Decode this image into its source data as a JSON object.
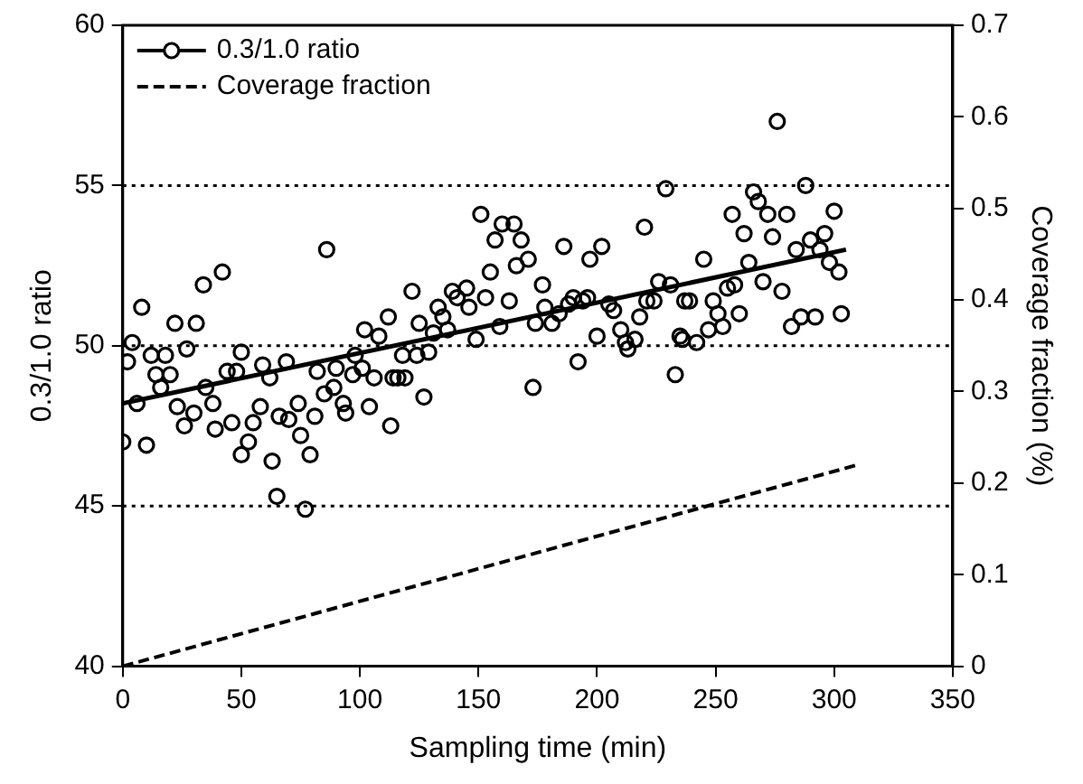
{
  "chart_data": {
    "type": "scatter",
    "xlabel": "Sampling time (min)",
    "ylabel": "0.3/1.0 ratio",
    "y2label": "Coverage fraction (%)",
    "xlim": [
      0,
      350
    ],
    "xticks": [
      0,
      50,
      100,
      150,
      200,
      250,
      300,
      350
    ],
    "ylim": [
      40,
      60
    ],
    "yticks": [
      40,
      45,
      50,
      55,
      60
    ],
    "y2lim": [
      0,
      0.7
    ],
    "y2ticks": [
      0,
      0.1,
      0.2,
      0.3,
      0.4,
      0.5,
      0.6,
      0.7
    ],
    "legend": "top left",
    "marker": "circle",
    "ref_lines": [
      {
        "axis": "y",
        "value": 45,
        "line_style": "dotted"
      },
      {
        "axis": "y",
        "value": 50,
        "line_style": "dotted"
      },
      {
        "axis": "y",
        "value": 55,
        "line_style": "dotted"
      }
    ],
    "series": [
      {
        "name": "0.3/1.0 ratio",
        "type": "scatter",
        "color": "#000000",
        "x": [
          0,
          4,
          2,
          6,
          8,
          10,
          12,
          18,
          14,
          20,
          16,
          22,
          27,
          23,
          26,
          30,
          31,
          34,
          42,
          35,
          38,
          39,
          46,
          44,
          48,
          50,
          58,
          55,
          53,
          50,
          59,
          62,
          63,
          65,
          66,
          69,
          70,
          74,
          75,
          77,
          79,
          81,
          82,
          85,
          86,
          89,
          90,
          93,
          94,
          97,
          98,
          101,
          102,
          104,
          106,
          108,
          112,
          113,
          114,
          116,
          119,
          118,
          124,
          122,
          127,
          125,
          129,
          131,
          133,
          135,
          137,
          139,
          141,
          145,
          146,
          149,
          153,
          151,
          155,
          157,
          160,
          159,
          163,
          165,
          166,
          168,
          171,
          173,
          174,
          177,
          178,
          181,
          184,
          186,
          188,
          190,
          192,
          194,
          196,
          197,
          200,
          202,
          205,
          207,
          210,
          212,
          213,
          216,
          218,
          220,
          221,
          224,
          226,
          229,
          231,
          233,
          235,
          237,
          236,
          239,
          242,
          245,
          247,
          249,
          251,
          253,
          255,
          258,
          260,
          257,
          262,
          264,
          266,
          268,
          270,
          272,
          274,
          276,
          278,
          280,
          282,
          284,
          286,
          288,
          290,
          292,
          294,
          296,
          298,
          300,
          302,
          303
        ],
        "values": [
          47.0,
          50.1,
          49.5,
          48.2,
          51.2,
          46.9,
          49.7,
          49.7,
          49.1,
          49.1,
          48.7,
          50.7,
          49.9,
          48.1,
          47.5,
          47.9,
          50.7,
          51.9,
          52.3,
          48.7,
          48.2,
          47.4,
          47.6,
          49.2,
          49.2,
          49.8,
          48.1,
          47.6,
          47.0,
          46.6,
          49.4,
          49.0,
          46.4,
          45.3,
          47.8,
          49.5,
          47.7,
          48.2,
          47.2,
          44.9,
          46.6,
          47.8,
          49.2,
          48.5,
          53.0,
          48.7,
          49.3,
          48.2,
          47.9,
          49.1,
          49.7,
          49.3,
          50.5,
          48.1,
          49.0,
          50.3,
          50.9,
          47.5,
          49.0,
          49.0,
          49.0,
          49.7,
          49.7,
          51.7,
          48.4,
          50.7,
          49.8,
          50.4,
          51.2,
          50.9,
          50.5,
          51.7,
          51.5,
          51.8,
          51.2,
          50.2,
          51.5,
          54.1,
          52.3,
          53.3,
          53.8,
          50.6,
          51.4,
          53.8,
          52.5,
          53.3,
          52.7,
          48.7,
          50.7,
          51.9,
          51.2,
          50.7,
          51.0,
          53.1,
          51.3,
          51.5,
          49.5,
          51.4,
          51.5,
          52.7,
          50.3,
          53.1,
          51.3,
          51.1,
          50.5,
          50.1,
          49.9,
          50.2,
          50.9,
          53.7,
          51.4,
          51.4,
          52.0,
          54.9,
          51.9,
          49.1,
          50.3,
          51.4,
          50.2,
          51.4,
          50.1,
          52.7,
          50.5,
          51.4,
          51.0,
          50.6,
          51.8,
          51.9,
          51.0,
          54.1,
          53.5,
          52.6,
          54.8,
          54.5,
          52.0,
          54.1,
          53.4,
          57.0,
          51.7,
          54.1,
          50.6,
          53.0,
          50.9,
          55.0,
          53.3,
          50.9,
          53.0,
          53.5,
          52.6,
          54.2,
          52.3,
          51.0
        ]
      },
      {
        "type": "line",
        "color": "#000000",
        "marker": "none",
        "line_style": "solid",
        "x": [
          0,
          305
        ],
        "values": [
          48.2,
          53.0
        ]
      },
      {
        "name": "Coverage fraction",
        "type": "line",
        "axis": "y2",
        "color": "#000000",
        "marker": "none",
        "line_style": "dashed",
        "x": [
          0,
          310
        ],
        "values": [
          0,
          0.22
        ]
      }
    ]
  }
}
